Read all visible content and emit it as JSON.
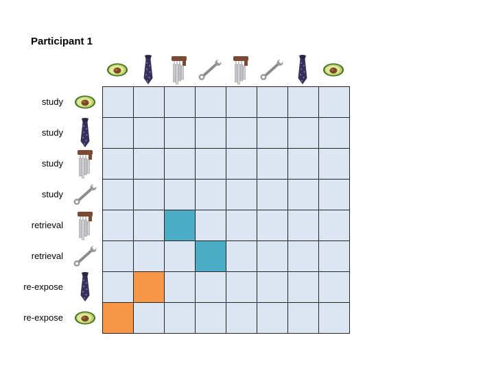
{
  "title": "Participant 1",
  "columns": [
    {
      "icon": "avocado-icon"
    },
    {
      "icon": "tie-icon"
    },
    {
      "icon": "wind-chime-icon"
    },
    {
      "icon": "wrench-icon"
    },
    {
      "icon": "wind-chime-icon"
    },
    {
      "icon": "wrench-icon"
    },
    {
      "icon": "tie-icon"
    },
    {
      "icon": "avocado-icon"
    }
  ],
  "rows": [
    {
      "label": "study",
      "icon": "avocado-icon"
    },
    {
      "label": "study",
      "icon": "tie-icon"
    },
    {
      "label": "study",
      "icon": "wind-chime-icon"
    },
    {
      "label": "study",
      "icon": "wrench-icon"
    },
    {
      "label": "retrieval",
      "icon": "wind-chime-icon"
    },
    {
      "label": "retrieval",
      "icon": "wrench-icon"
    },
    {
      "label": "re-expose",
      "icon": "tie-icon"
    },
    {
      "label": "re-expose",
      "icon": "avocado-icon"
    }
  ],
  "colors": {
    "cell": "#dce6f2",
    "retrieval_match": "#4bacc6",
    "reexpose_match": "#f79646",
    "grid_line": "#222222"
  },
  "highlights": [
    {
      "row": 4,
      "col": 2,
      "kind": "retrieval_match"
    },
    {
      "row": 5,
      "col": 3,
      "kind": "retrieval_match"
    },
    {
      "row": 6,
      "col": 1,
      "kind": "reexpose_match"
    },
    {
      "row": 7,
      "col": 0,
      "kind": "reexpose_match"
    }
  ]
}
